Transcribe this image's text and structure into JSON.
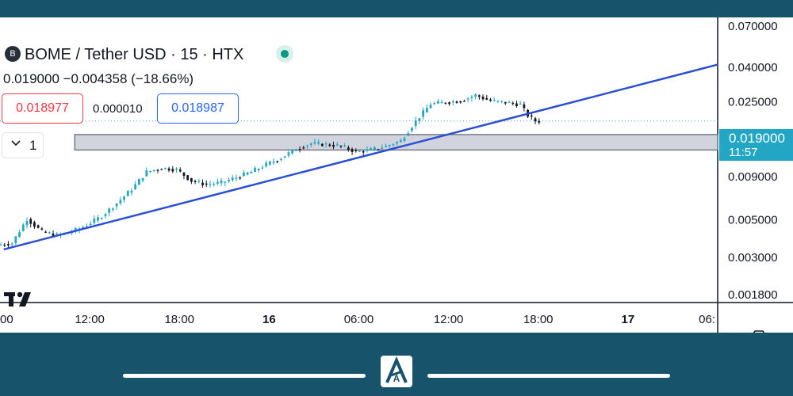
{
  "header": {
    "symbol_icon_letter": "B",
    "title": "BOME / Tether USD · 15 · HTX",
    "ohlc_line": "0.019000  −0.004358 (−18.66%)",
    "bid_price": "0.018977",
    "spread": "0.000010",
    "ask_price": "0.018987",
    "indicator_count": "1"
  },
  "colors": {
    "up": "#22a6c4",
    "down": "#131722",
    "trendline": "#2a4fd6",
    "zone_fill": "#d1d4dc",
    "current_price": "#22a6c4",
    "bid": "#f23645",
    "ask": "#2962ff",
    "frame": "#17536b"
  },
  "icons": {
    "market_status": "market-open-dot-icon",
    "collapse": "chevron-down-icon",
    "brand": "tradingview-logo-icon",
    "settings": "hexagon-settings-icon",
    "footer_logo": "aa-logo-icon"
  },
  "chart_data": {
    "type": "candlestick",
    "symbol": "BOME / Tether USD",
    "interval": "15",
    "exchange": "HTX",
    "scale": "log",
    "ylim": [
      0.0016,
      0.078
    ],
    "y_tick_labels": [
      "0.070000",
      "0.040000",
      "0.025000",
      "0.009000",
      "0.005000",
      "0.003000",
      "0.001800"
    ],
    "y_tick_values": [
      0.07,
      0.04,
      0.025,
      0.009,
      0.005,
      0.003,
      0.0018
    ],
    "x_range": [
      "2024-03-15T06:00",
      "2024-03-17T06:00"
    ],
    "x_tick_labels": [
      "00",
      "12:00",
      "18:00",
      "16",
      "06:00",
      "12:00",
      "18:00",
      "17",
      "06:"
    ],
    "x_tick_times": [
      "2024-03-15T07:00",
      "2024-03-15T12:00",
      "2024-03-15T18:00",
      "2024-03-16T00:00",
      "2024-03-16T06:00",
      "2024-03-16T12:00",
      "2024-03-16T18:00",
      "2024-03-17T00:00",
      "2024-03-17T06:00"
    ],
    "bold_x_ticks": [
      "16",
      "17"
    ],
    "current_price": "0.019000",
    "current_price_value": 0.019,
    "countdown": "11:57",
    "path_points": [
      [
        "2024-03-15T06:00",
        0.0035
      ],
      [
        "2024-03-15T07:00",
        0.0036
      ],
      [
        "2024-03-15T08:00",
        0.005
      ],
      [
        "2024-03-15T09:00",
        0.0042
      ],
      [
        "2024-03-15T10:00",
        0.004
      ],
      [
        "2024-03-15T11:00",
        0.0042
      ],
      [
        "2024-03-15T12:00",
        0.0046
      ],
      [
        "2024-03-15T13:00",
        0.0052
      ],
      [
        "2024-03-15T14:00",
        0.0062
      ],
      [
        "2024-03-15T15:00",
        0.0075
      ],
      [
        "2024-03-15T16:00",
        0.0095
      ],
      [
        "2024-03-15T17:00",
        0.01
      ],
      [
        "2024-03-15T18:00",
        0.0098
      ],
      [
        "2024-03-15T19:00",
        0.0084
      ],
      [
        "2024-03-15T20:00",
        0.008
      ],
      [
        "2024-03-15T21:00",
        0.0082
      ],
      [
        "2024-03-15T22:00",
        0.0088
      ],
      [
        "2024-03-15T23:00",
        0.0095
      ],
      [
        "2024-03-16T00:00",
        0.0105
      ],
      [
        "2024-03-16T01:00",
        0.0115
      ],
      [
        "2024-03-16T02:00",
        0.013
      ],
      [
        "2024-03-16T03:00",
        0.014
      ],
      [
        "2024-03-16T04:00",
        0.0138
      ],
      [
        "2024-03-16T05:00",
        0.0135
      ],
      [
        "2024-03-16T06:00",
        0.0125
      ],
      [
        "2024-03-16T07:00",
        0.0128
      ],
      [
        "2024-03-16T08:00",
        0.0135
      ],
      [
        "2024-03-16T09:00",
        0.0145
      ],
      [
        "2024-03-16T10:00",
        0.019
      ],
      [
        "2024-03-16T11:00",
        0.024
      ],
      [
        "2024-03-16T12:00",
        0.0245
      ],
      [
        "2024-03-16T13:00",
        0.025
      ],
      [
        "2024-03-16T14:00",
        0.027
      ],
      [
        "2024-03-16T15:00",
        0.025
      ],
      [
        "2024-03-16T16:00",
        0.0245
      ],
      [
        "2024-03-16T17:00",
        0.0238
      ],
      [
        "2024-03-16T17:30",
        0.0205
      ],
      [
        "2024-03-16T18:00",
        0.019
      ]
    ],
    "trendline": {
      "from": [
        "2024-03-15T06:15",
        0.0033
      ],
      "to": [
        "2024-03-17T06:00",
        0.041
      ]
    },
    "zone": {
      "from_time": "2024-03-15T11:00",
      "to_time": "2024-03-17T06:00",
      "price_low": 0.0128,
      "price_high": 0.0158
    }
  },
  "footer": {
    "logo_text": "A"
  }
}
